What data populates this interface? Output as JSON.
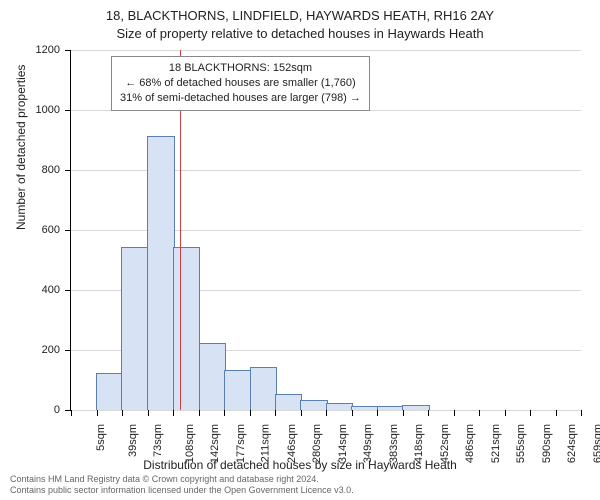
{
  "title_main": "18, BLACKTHORNS, LINDFIELD, HAYWARDS HEATH, RH16 2AY",
  "title_sub": "Size of property relative to detached houses in Haywards Heath",
  "y_axis_label": "Number of detached properties",
  "x_axis_label": "Distribution of detached houses by size in Haywards Heath",
  "chart": {
    "type": "histogram",
    "ylim": [
      0,
      1200
    ],
    "ytick_step": 200,
    "y_ticks": [
      0,
      200,
      400,
      600,
      800,
      1000,
      1200
    ],
    "grid_color": "#d9d9d9",
    "background_color": "#ffffff",
    "bar_fill": "#d7e3f4",
    "bar_border": "#5b7fb0",
    "ref_line_color": "#d04040",
    "ref_line_x": 152,
    "x_ticks": [
      "5sqm",
      "39sqm",
      "73sqm",
      "108sqm",
      "142sqm",
      "177sqm",
      "211sqm",
      "246sqm",
      "280sqm",
      "314sqm",
      "349sqm",
      "383sqm",
      "418sqm",
      "452sqm",
      "486sqm",
      "521sqm",
      "555sqm",
      "590sqm",
      "624sqm",
      "659sqm",
      "693sqm"
    ],
    "x_min": 5,
    "x_max": 693,
    "bars": [
      {
        "x0": 39,
        "x1": 73,
        "value": 120
      },
      {
        "x0": 73,
        "x1": 108,
        "value": 540
      },
      {
        "x0": 108,
        "x1": 142,
        "value": 910
      },
      {
        "x0": 142,
        "x1": 177,
        "value": 540
      },
      {
        "x0": 177,
        "x1": 211,
        "value": 220
      },
      {
        "x0": 211,
        "x1": 246,
        "value": 130
      },
      {
        "x0": 246,
        "x1": 280,
        "value": 140
      },
      {
        "x0": 280,
        "x1": 314,
        "value": 50
      },
      {
        "x0": 314,
        "x1": 349,
        "value": 30
      },
      {
        "x0": 349,
        "x1": 383,
        "value": 20
      },
      {
        "x0": 383,
        "x1": 418,
        "value": 10
      },
      {
        "x0": 418,
        "x1": 452,
        "value": 10
      },
      {
        "x0": 452,
        "x1": 486,
        "value": 15
      }
    ]
  },
  "annotation": {
    "line1": "18 BLACKTHORNS: 152sqm",
    "line2": "← 68% of detached houses are smaller (1,760)",
    "line3": "31% of semi-detached houses are larger (798) →"
  },
  "credits": {
    "line1": "Contains HM Land Registry data © Crown copyright and database right 2024.",
    "line2": "Contains public sector information licensed under the Open Government Licence v3.0."
  },
  "font": {
    "title_size": 13,
    "axis_label_size": 12,
    "tick_size": 11,
    "annotation_size": 11,
    "credits_size": 9
  }
}
